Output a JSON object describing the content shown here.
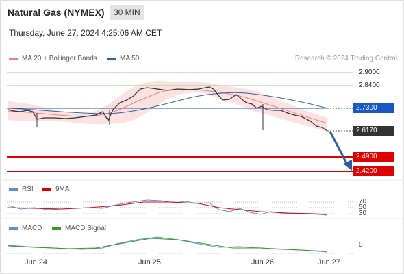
{
  "header": {
    "instrument": "Natural Gas (NYMEX)",
    "timeframe": "30 MIN",
    "datetime": "Thursday, June 27, 2024 4:25:06 AM CET"
  },
  "legend": [
    {
      "label": "MA 20 + Bollinger Bands",
      "color": "#f08080"
    },
    {
      "label": "MA 50",
      "color": "#2f5f9e"
    }
  ],
  "credit": "Research © 2024 Trading Central",
  "levels": {
    "resistance2": "2.9000",
    "resistance1": "2.8400",
    "pivot": "2.7300",
    "last": "2.6170",
    "support1": "2.4900",
    "support2": "2.4200"
  },
  "rsi": {
    "legend": [
      {
        "label": "RSI",
        "color": "#5b8ed6"
      },
      {
        "label": "9MA",
        "color": "#e00000"
      }
    ],
    "levels": [
      "70",
      "50",
      "30"
    ]
  },
  "macd": {
    "legend": [
      {
        "label": "MACD",
        "color": "#5b8ed6"
      },
      {
        "label": "MACD Signal",
        "color": "#3a9a1a"
      }
    ],
    "zero": "0"
  },
  "xaxis": [
    "Jun 24",
    "Jun 25",
    "Jun 26",
    "Jun 27"
  ],
  "colors": {
    "pivot": "#1a56c4",
    "support": "#e00000",
    "resistance": "#8fd18f",
    "last": "#333333",
    "arrow": "#2f5f9e"
  }
}
